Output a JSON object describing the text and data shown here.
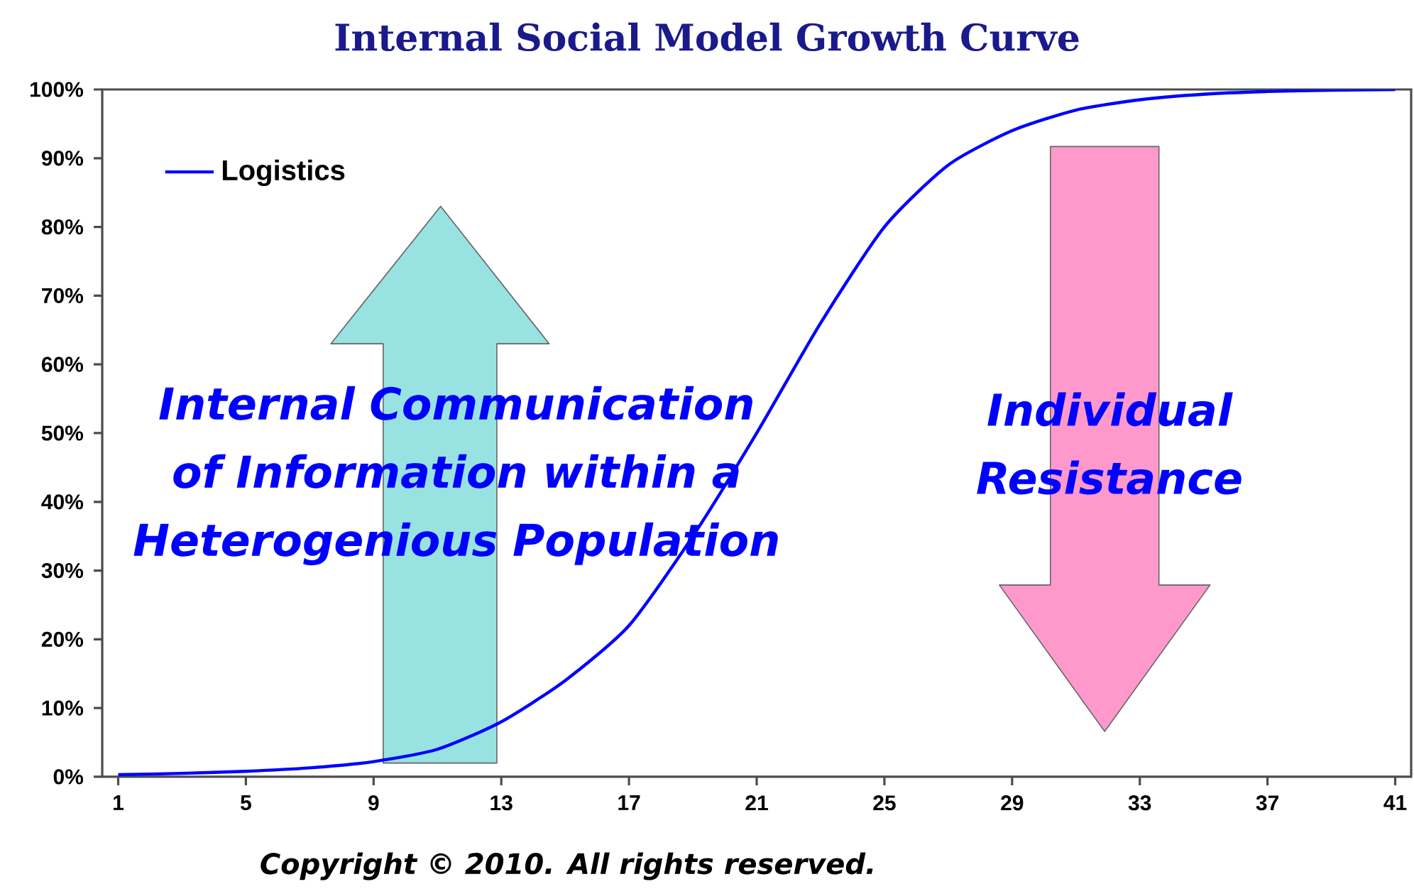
{
  "chart_data": {
    "type": "line",
    "title": "Internal Social Model Growth Curve",
    "x": [
      1,
      3,
      5,
      7,
      9,
      11,
      13,
      15,
      17,
      19,
      21,
      23,
      25,
      27,
      29,
      31,
      33,
      35,
      37,
      39,
      41
    ],
    "series": [
      {
        "name": "Logistics",
        "color": "#0000ff",
        "values": [
          0.3,
          0.5,
          0.8,
          1.3,
          2.2,
          4,
          8,
          14,
          22,
          35,
          50,
          66,
          80,
          89,
          94,
          97,
          98.5,
          99.3,
          99.7,
          99.9,
          100
        ]
      }
    ],
    "xlim": [
      0.5,
      41.5
    ],
    "xticks": [
      1,
      5,
      9,
      13,
      17,
      21,
      25,
      29,
      33,
      37,
      41
    ],
    "ylim": [
      0,
      100
    ],
    "yticks": [
      {
        "value": 0,
        "label": "0%"
      },
      {
        "value": 10,
        "label": "10%"
      },
      {
        "value": 20,
        "label": "20%"
      },
      {
        "value": 30,
        "label": "30%"
      },
      {
        "value": 40,
        "label": "40%"
      },
      {
        "value": 50,
        "label": "50%"
      },
      {
        "value": 60,
        "label": "60%"
      },
      {
        "value": 70,
        "label": "70%"
      },
      {
        "value": 80,
        "label": "80%"
      },
      {
        "value": 90,
        "label": "90%"
      },
      {
        "value": 100,
        "label": "100%"
      }
    ],
    "legend": "top left",
    "marker": "none",
    "line_style": "solid",
    "annotations": [
      "Internal Communication of Information within a Heterogenious Population",
      "Individual Resistance",
      "Copyright © 2010. All rights reserved."
    ]
  }
}
